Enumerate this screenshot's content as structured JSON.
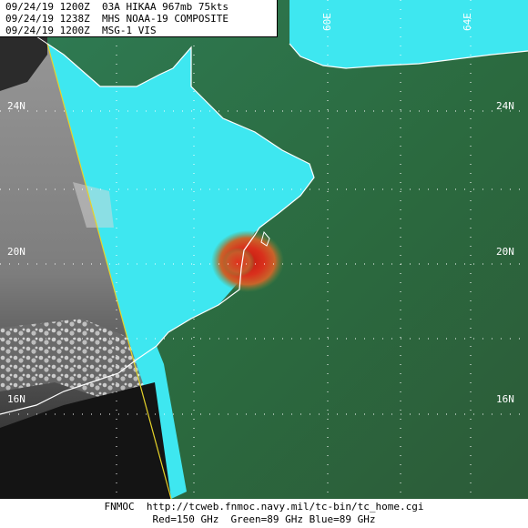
{
  "header": {
    "lines": [
      "09/24/19 1200Z  03A HIKAA 967mb 75kts",
      "09/24/19 1238Z  MHS NOAA-19 COMPOSITE",
      "09/24/19 1200Z  MSG-1 VIS"
    ]
  },
  "grid_labels": {
    "lat_24": "24N",
    "lat_20": "20N",
    "lat_16": "16N",
    "lon_60": "60E",
    "lon_64": "64E"
  },
  "footer": {
    "line1": "FNMOC  http://tcweb.fnmoc.navy.mil/tc-bin/tc_home.cgi",
    "line2": "Red=150 GHz  Green=89 GHz Blue=89 GHz"
  },
  "colors": {
    "cyan_land": "#35e8f2",
    "green_sea": "#2f6e45",
    "vis_gray": "#8f8f8f",
    "storm_red": "#d62417",
    "swath_edge": "#e6d32a"
  }
}
